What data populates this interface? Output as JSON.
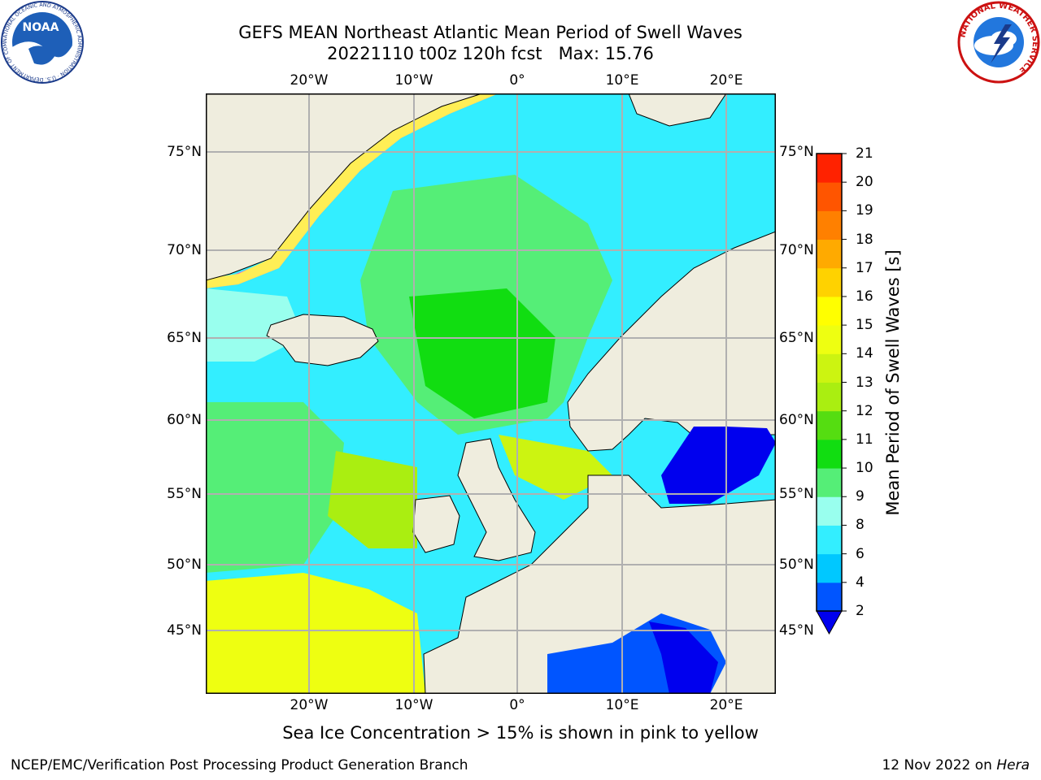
{
  "title": {
    "line1": "GEFS MEAN Northeast Atlantic Mean Period of Swell Waves",
    "line2": "20221110 t00z 120h fcst   Max: 15.76"
  },
  "logos": {
    "noaa": {
      "text": "NOAA",
      "ring": "NATIONAL OCEANIC AND ATMOSPHERIC ADMINISTRATION · U.S. DEPARTMENT OF COMMERCE"
    },
    "nws": {
      "ring": "NATIONAL WEATHER SERVICE"
    }
  },
  "map": {
    "lat_labels": [
      "75°N",
      "70°N",
      "65°N",
      "60°N",
      "55°N",
      "50°N",
      "45°N"
    ],
    "lon_labels": [
      "20°W",
      "10°W",
      "0°",
      "10°E",
      "20°E"
    ],
    "colors": {
      "land": "#efedde",
      "ice_pink": "#ff44dd",
      "ice_yellow": "#ffee55"
    }
  },
  "colorbar": {
    "label": "Mean Period of Swell Waves [s]",
    "ticks": [
      "2",
      "4",
      "6",
      "8",
      "9",
      "10",
      "11",
      "12",
      "13",
      "14",
      "15",
      "16",
      "17",
      "18",
      "19",
      "20",
      "21"
    ],
    "colors": [
      "#0055ff",
      "#00c8ff",
      "#33eeff",
      "#99ffee",
      "#55ee77",
      "#11dd11",
      "#55dd11",
      "#aaee11",
      "#ccf411",
      "#eeff11",
      "#ffff00",
      "#ffd200",
      "#ffaa00",
      "#ff8000",
      "#ff5500",
      "#ff2200"
    ],
    "under_color": "#0000ee"
  },
  "note": "Sea Ice Concentration > 15% is shown in pink to yellow",
  "footer": {
    "left": "NCEP/EMC/Verification Post Processing Product Generation Branch",
    "right_date": "12 Nov 2022 on ",
    "right_host": "Hera"
  }
}
